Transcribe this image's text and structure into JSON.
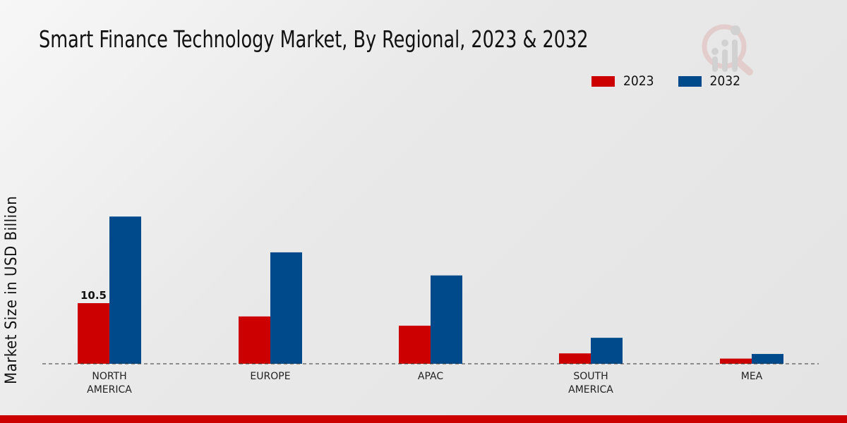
{
  "chart_data": {
    "type": "bar",
    "title": "Smart Finance Technology Market, By Regional, 2023 & 2032",
    "xlabel": "",
    "ylabel": "Market Size in USD Billion",
    "categories": [
      "NORTH AMERICA",
      "EUROPE",
      "APAC",
      "SOUTH AMERICA",
      "MEA"
    ],
    "category_lines": [
      [
        "NORTH",
        "AMERICA"
      ],
      [
        "EUROPE"
      ],
      [
        "APAC"
      ],
      [
        "SOUTH",
        "AMERICA"
      ],
      [
        "MEA"
      ]
    ],
    "series": [
      {
        "name": "2023",
        "color": "#cc0000",
        "values": [
          10.5,
          8.2,
          6.6,
          1.8,
          0.9
        ]
      },
      {
        "name": "2032",
        "color": "#004a8c",
        "values": [
          25.5,
          19.3,
          15.3,
          4.5,
          1.7
        ]
      }
    ],
    "data_labels": [
      {
        "series": "2023",
        "category": "NORTH AMERICA",
        "text": "10.5"
      }
    ],
    "grid": false,
    "legend_position": "top-right"
  }
}
